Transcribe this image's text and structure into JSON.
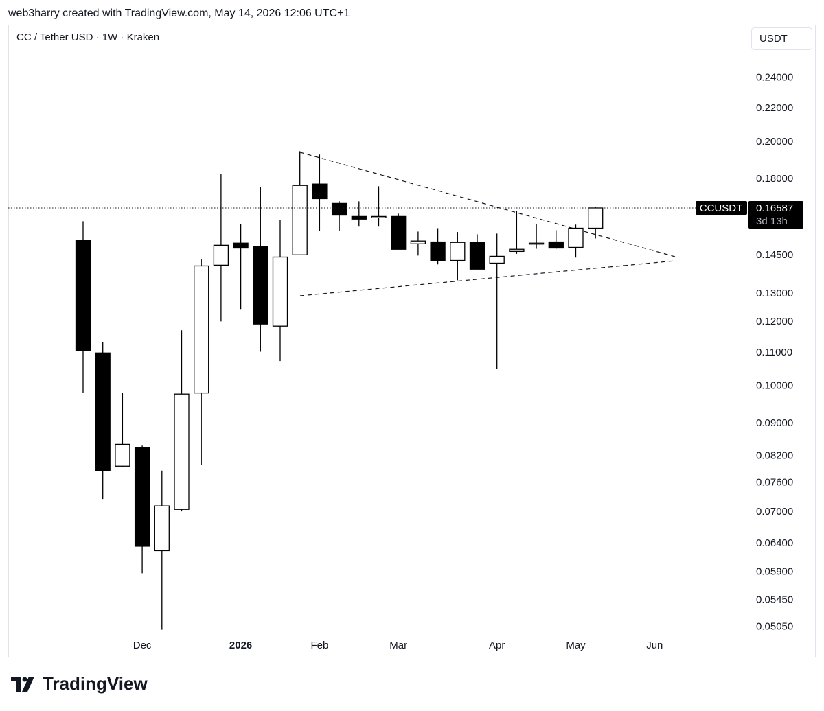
{
  "header": {
    "attribution": "web3harry created with TradingView.com, May 14, 2026 12:06 UTC+1"
  },
  "chart_data": {
    "type": "candlestick",
    "title": "CC / Tether USD · 1W · Kraken",
    "currency": "USDT",
    "categories": [
      null,
      null,
      null,
      null,
      null,
      null,
      null,
      null,
      null,
      null,
      null,
      null,
      null,
      null,
      null,
      null,
      null,
      null,
      null,
      null,
      null,
      null,
      null,
      null,
      null,
      null,
      null
    ],
    "open": [
      0.1512,
      0.1099,
      0.0797,
      0.0841,
      0.0627,
      0.0705,
      0.0981,
      0.141,
      0.1501,
      0.1486,
      0.1186,
      0.1452,
      0.1775,
      0.168,
      0.1619,
      0.1613,
      0.1619,
      0.1498,
      0.1506,
      0.1429,
      0.1504,
      0.1418,
      0.1466,
      0.1498,
      0.1506,
      0.1483,
      0.1566
    ],
    "high": [
      0.1597,
      0.1133,
      0.0981,
      0.0845,
      0.0787,
      0.1172,
      0.1435,
      0.1827,
      0.1585,
      0.1761,
      0.1603,
      0.1948,
      0.193,
      0.169,
      0.169,
      0.1764,
      0.1632,
      0.1551,
      0.1566,
      0.1549,
      0.1539,
      0.1542,
      0.1645,
      0.1585,
      0.1557,
      0.1582,
      0.1664
    ],
    "low": [
      0.0981,
      0.0726,
      0.0795,
      0.0588,
      0.0501,
      0.0701,
      0.08,
      0.1202,
      0.1245,
      0.1103,
      0.1074,
      0.1452,
      0.1554,
      0.1554,
      0.1573,
      0.1573,
      0.1475,
      0.1449,
      0.1413,
      0.1351,
      0.1394,
      0.1051,
      0.1456,
      0.1477,
      0.1477,
      0.1441,
      0.1521
    ],
    "close": [
      0.1107,
      0.0787,
      0.0848,
      0.0635,
      0.0712,
      0.0978,
      0.1407,
      0.1492,
      0.148,
      0.1193,
      0.1443,
      0.1768,
      0.1703,
      0.1625,
      0.1607,
      0.1619,
      0.1475,
      0.151,
      0.1427,
      0.1504,
      0.1394,
      0.1446,
      0.1475,
      0.1501,
      0.148,
      0.1566,
      0.16587
    ],
    "log_scale": true,
    "ylim": [
      0.0464,
      0.279
    ],
    "yticks": [
      {
        "value": 0.24,
        "label": "0.24000"
      },
      {
        "value": 0.22,
        "label": "0.22000"
      },
      {
        "value": 0.2,
        "label": "0.20000"
      },
      {
        "value": 0.18,
        "label": "0.18000"
      },
      {
        "value": 0.145,
        "label": "0.14500"
      },
      {
        "value": 0.13,
        "label": "0.13000"
      },
      {
        "value": 0.12,
        "label": "0.12000"
      },
      {
        "value": 0.11,
        "label": "0.11000"
      },
      {
        "value": 0.1,
        "label": "0.10000"
      },
      {
        "value": 0.09,
        "label": "0.09000"
      },
      {
        "value": 0.082,
        "label": "0.08200"
      },
      {
        "value": 0.076,
        "label": "0.07600"
      },
      {
        "value": 0.07,
        "label": "0.07000"
      },
      {
        "value": 0.064,
        "label": "0.06400"
      },
      {
        "value": 0.059,
        "label": "0.05900"
      },
      {
        "value": 0.0545,
        "label": "0.05450"
      },
      {
        "value": 0.0505,
        "label": "0.05050"
      }
    ],
    "xticks": [
      {
        "value": 3,
        "label": "Dec"
      },
      {
        "value": 8,
        "label": "2026"
      },
      {
        "value": 12,
        "label": "Feb"
      },
      {
        "value": 16,
        "label": "Mar"
      },
      {
        "value": 21,
        "label": "Apr"
      },
      {
        "value": 25,
        "label": "May"
      },
      {
        "value": 29,
        "label": "Jun"
      }
    ],
    "last_price": {
      "symbol": "CCUSDT",
      "value": 0.16587,
      "countdown": "3d 13h"
    },
    "up_color": "#ffffff",
    "down_color": "#000000"
  },
  "footer": {
    "brand": "TradingView"
  }
}
